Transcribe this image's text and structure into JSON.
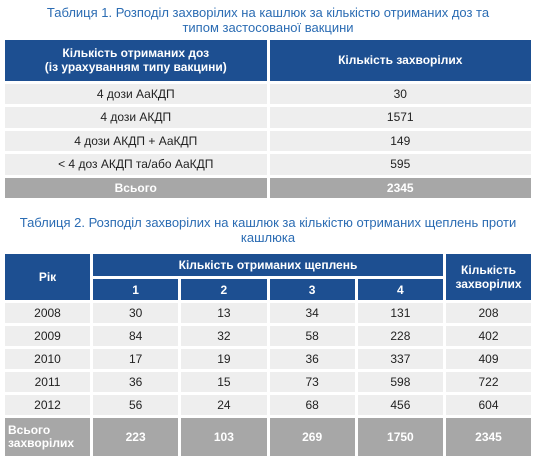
{
  "table1": {
    "title": "Таблиця 1.  Розподіл захворілих на кашлюк за кількістю отриманих доз та типом застосованої вакцини",
    "headers": [
      "Кількість отриманих доз\n(із урахуванням типу вакцини)",
      "Кількість захворілих"
    ],
    "rows": [
      [
        "4 дози АаКДП",
        30
      ],
      [
        "4 дози АКДП",
        1571
      ],
      [
        "4 дози АКДП + АаКДП",
        149
      ],
      [
        "< 4 доз АКДП та/або АаКДП",
        595
      ]
    ],
    "total": [
      "Всього",
      2345
    ]
  },
  "table2": {
    "title": "Таблиця 2.  Розподіл захворілих на кашлюк за кількістю отриманих щеплень проти кашлюка",
    "header_year": "Рік",
    "header_group": "Кількість отриманих щеплень",
    "header_total": "Кількість\nзахворілих",
    "subheaders": [
      1,
      2,
      3,
      4
    ],
    "rows": [
      [
        2008,
        30,
        13,
        34,
        131,
        208
      ],
      [
        2009,
        84,
        32,
        58,
        228,
        402
      ],
      [
        2010,
        17,
        19,
        36,
        337,
        409
      ],
      [
        2011,
        36,
        15,
        73,
        598,
        722
      ],
      [
        2012,
        56,
        24,
        68,
        456,
        604
      ]
    ],
    "total": [
      "Всього\nзахворілих",
      223,
      103,
      269,
      1750,
      2345
    ]
  }
}
